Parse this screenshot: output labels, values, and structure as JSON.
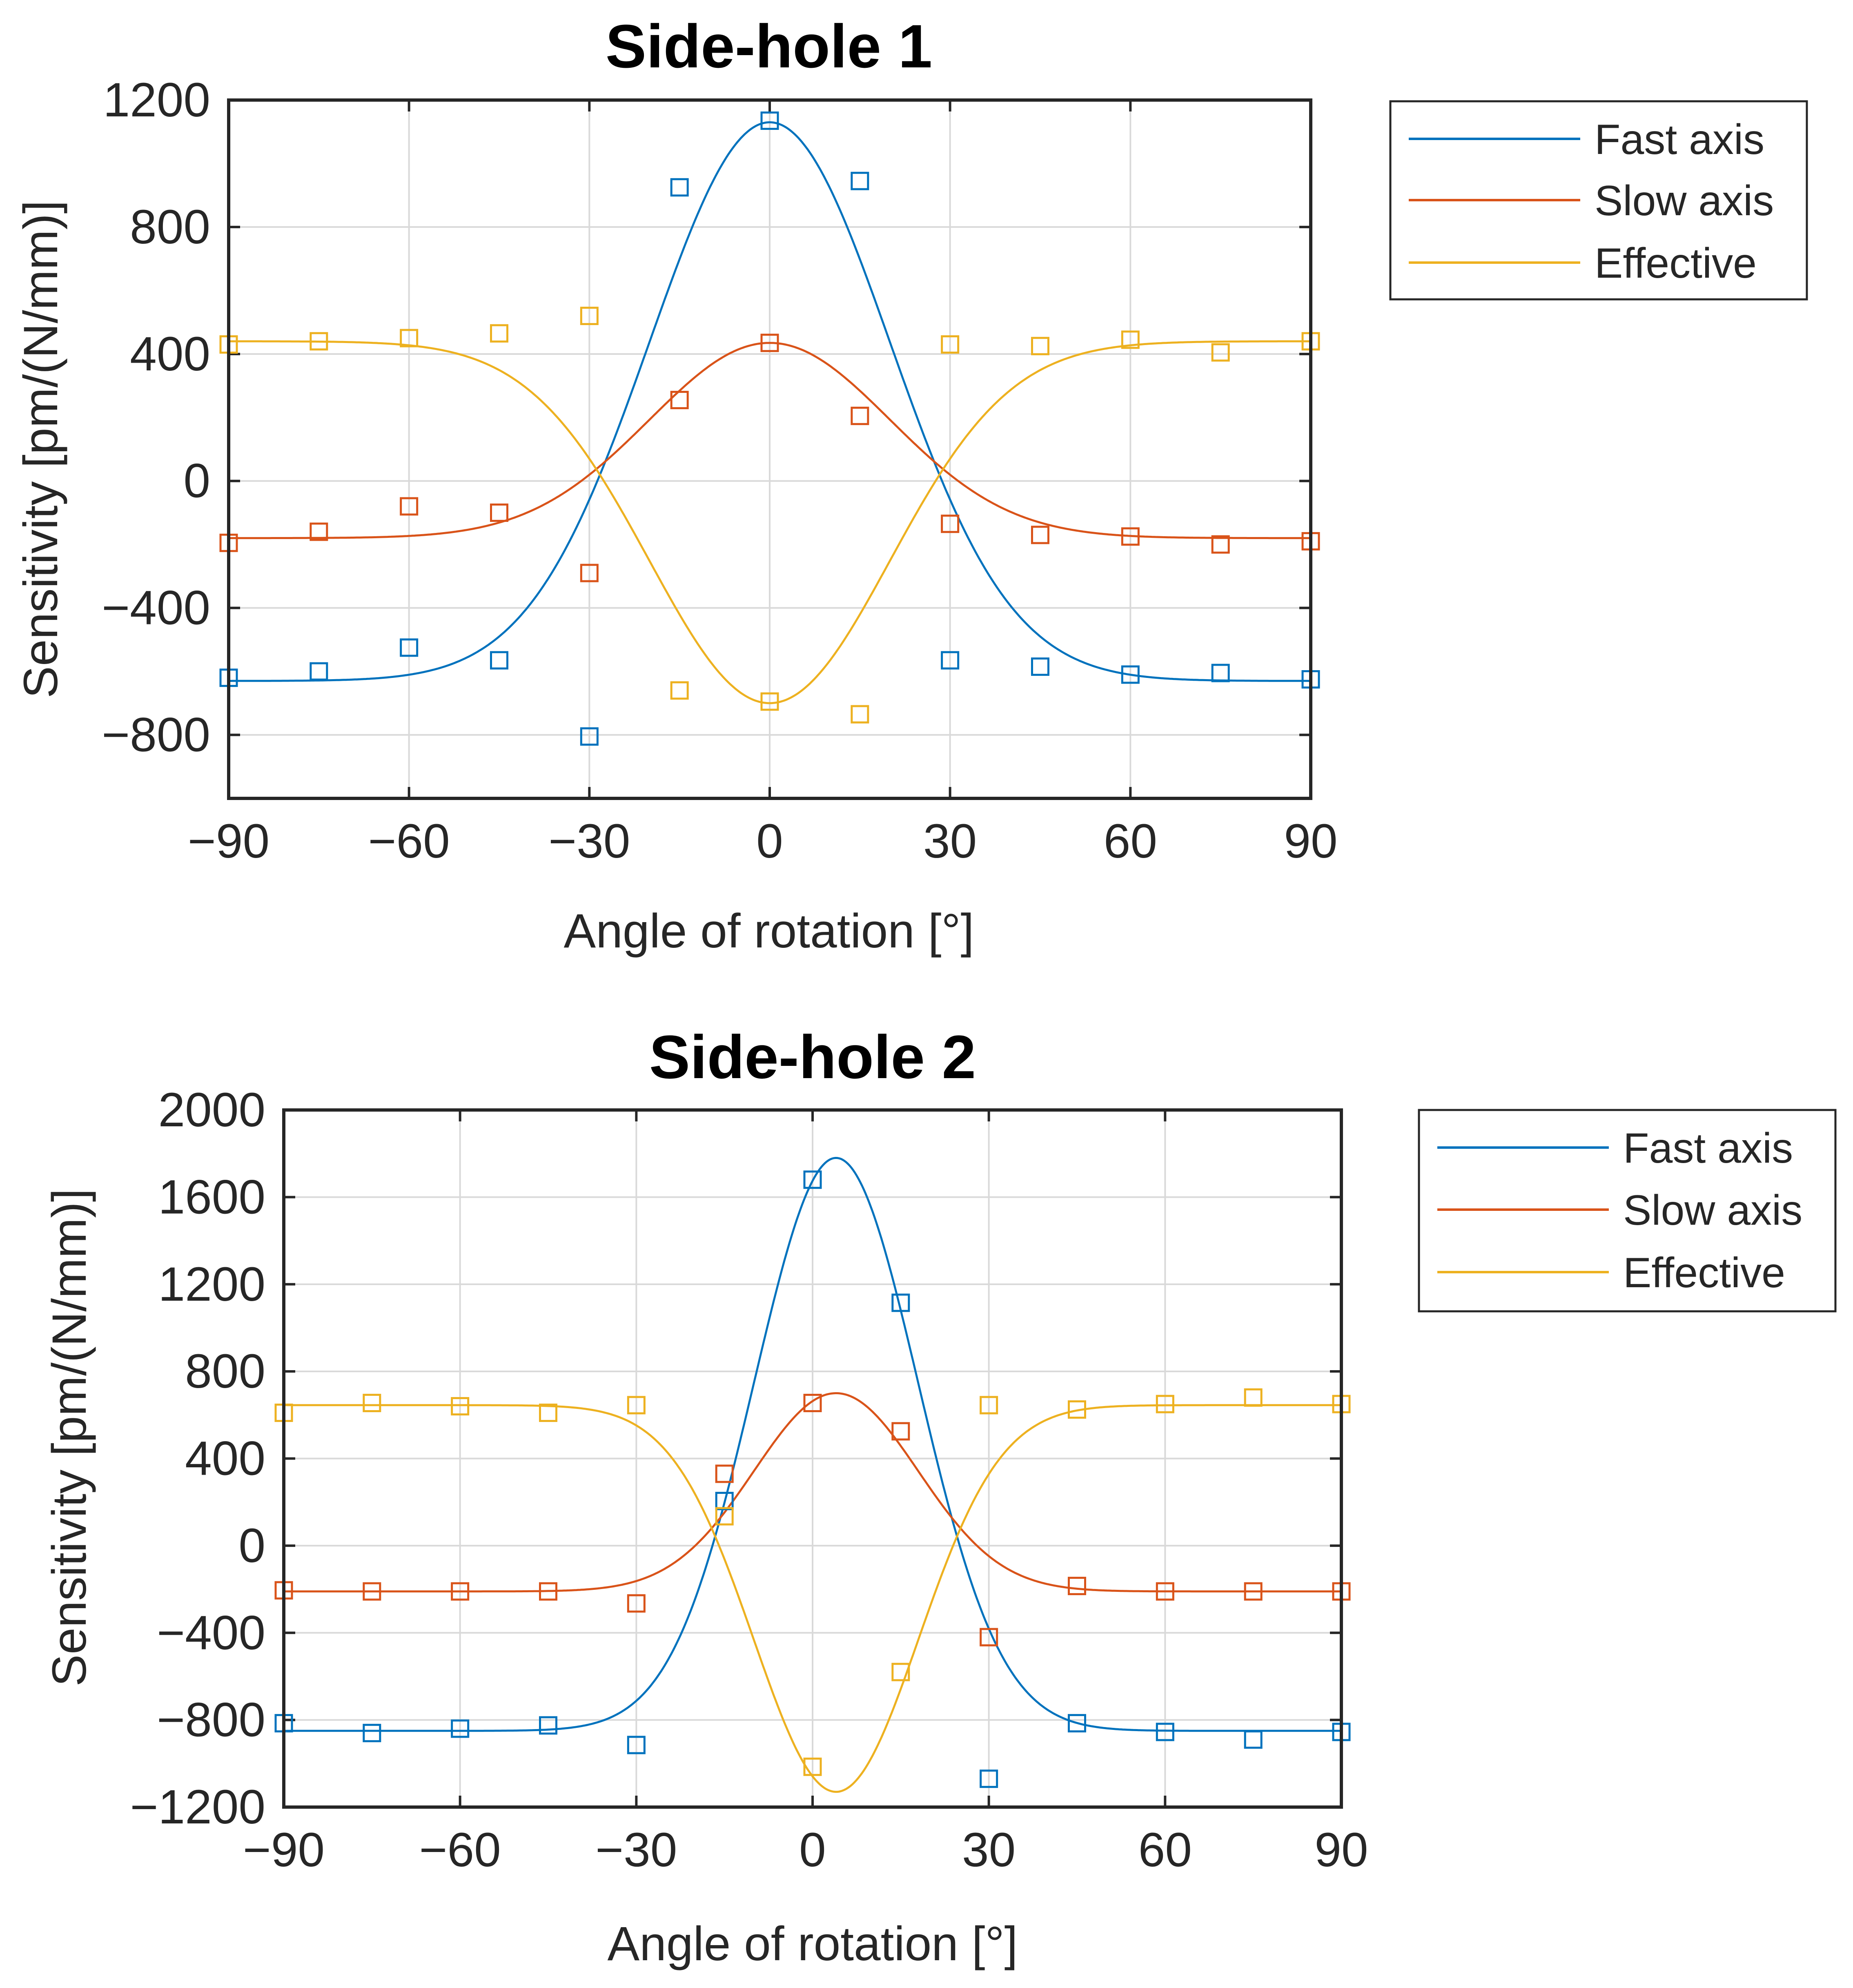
{
  "colors": {
    "fast": "#0072BD",
    "slow": "#D95319",
    "effective": "#EDB120",
    "grid": "#d9d9d9",
    "axis": "#262626"
  },
  "chart_data": [
    {
      "type": "scatter",
      "title": "Side-hole 1",
      "xlabel": "Angle of rotation [°]",
      "ylabel": "Sensitivity [pm/(N/mm)]",
      "xlim": [
        -90,
        90
      ],
      "ylim": [
        -1000,
        1200
      ],
      "xticks": [
        -90,
        -60,
        -30,
        0,
        30,
        60,
        90
      ],
      "yticks": [
        -800,
        -400,
        0,
        400,
        800,
        1200
      ],
      "xtick_labels": [
        "−90",
        "−60",
        "−30",
        "0",
        "30",
        "60",
        "90"
      ],
      "ytick_labels": [
        "−800",
        "−400",
        "0",
        "400",
        "800",
        "1200"
      ],
      "grid": true,
      "legend_position": "outside-right",
      "series": [
        {
          "name": "Fast axis",
          "color_key": "fast",
          "points_x": [
            -90,
            -75,
            -60,
            -45,
            -30,
            -15,
            0,
            15,
            30,
            45,
            60,
            75,
            90
          ],
          "points_y": [
            -620,
            -600,
            -525,
            -565,
            -805,
            925,
            1135,
            945,
            -565,
            -585,
            -610,
            -605,
            -625
          ],
          "fit": {
            "base": -630,
            "amp": 1760,
            "center": 0,
            "width": 20
          }
        },
        {
          "name": "Slow axis",
          "color_key": "slow",
          "points_x": [
            -90,
            -75,
            -60,
            -45,
            -30,
            -15,
            0,
            15,
            30,
            45,
            60,
            75,
            90
          ],
          "points_y": [
            -195,
            -160,
            -80,
            -100,
            -290,
            255,
            435,
            205,
            -135,
            -170,
            -175,
            -200,
            -190
          ],
          "fit": {
            "base": -180,
            "amp": 615,
            "center": 0,
            "width": 20
          }
        },
        {
          "name": "Effective",
          "color_key": "effective",
          "points_x": [
            -90,
            -75,
            -60,
            -45,
            -30,
            -15,
            0,
            15,
            30,
            45,
            60,
            75,
            90
          ],
          "points_y": [
            430,
            440,
            450,
            465,
            520,
            -660,
            -695,
            -735,
            430,
            425,
            445,
            405,
            440
          ],
          "fit": {
            "base": 440,
            "amp": -1140,
            "center": 0,
            "width": 20
          }
        }
      ]
    },
    {
      "type": "scatter",
      "title": "Side-hole 2",
      "xlabel": "Angle of rotation [°]",
      "ylabel": "Sensitivity [pm/(N/mm)]",
      "xlim": [
        -90,
        90
      ],
      "ylim": [
        -1200,
        2000
      ],
      "xticks": [
        -90,
        -60,
        -30,
        0,
        30,
        60,
        90
      ],
      "yticks": [
        -1200,
        -800,
        -400,
        0,
        400,
        800,
        1200,
        1600,
        2000
      ],
      "xtick_labels": [
        "−90",
        "−60",
        "−30",
        "0",
        "30",
        "60",
        "90"
      ],
      "ytick_labels": [
        "−1200",
        "−800",
        "−400",
        "0",
        "400",
        "800",
        "1200",
        "1600",
        "2000"
      ],
      "grid": true,
      "legend_position": "outside-right",
      "series": [
        {
          "name": "Fast axis",
          "color_key": "fast",
          "points_x": [
            -90,
            -75,
            -60,
            -45,
            -30,
            -15,
            0,
            15,
            30,
            45,
            60,
            75,
            90
          ],
          "points_y": [
            -815,
            -860,
            -840,
            -825,
            -915,
            205,
            1680,
            1115,
            -1070,
            -815,
            -855,
            -890,
            -855
          ],
          "fit": {
            "base": -850,
            "amp": 2630,
            "center": 4,
            "width": 14
          }
        },
        {
          "name": "Slow axis",
          "color_key": "slow",
          "points_x": [
            -90,
            -75,
            -60,
            -45,
            -30,
            -15,
            0,
            15,
            30,
            45,
            60,
            75,
            90
          ],
          "points_y": [
            -205,
            -210,
            -210,
            -210,
            -265,
            330,
            655,
            525,
            -420,
            -185,
            -210,
            -210,
            -210
          ],
          "fit": {
            "base": -210,
            "amp": 910,
            "center": 4,
            "width": 14
          }
        },
        {
          "name": "Effective",
          "color_key": "effective",
          "points_x": [
            -90,
            -75,
            -60,
            -45,
            -30,
            -15,
            0,
            15,
            30,
            45,
            60,
            75,
            90
          ],
          "points_y": [
            610,
            655,
            640,
            610,
            645,
            135,
            -1015,
            -580,
            645,
            625,
            650,
            680,
            650
          ],
          "fit": {
            "base": 645,
            "amp": -1775,
            "center": 4,
            "width": 14
          }
        }
      ]
    }
  ]
}
